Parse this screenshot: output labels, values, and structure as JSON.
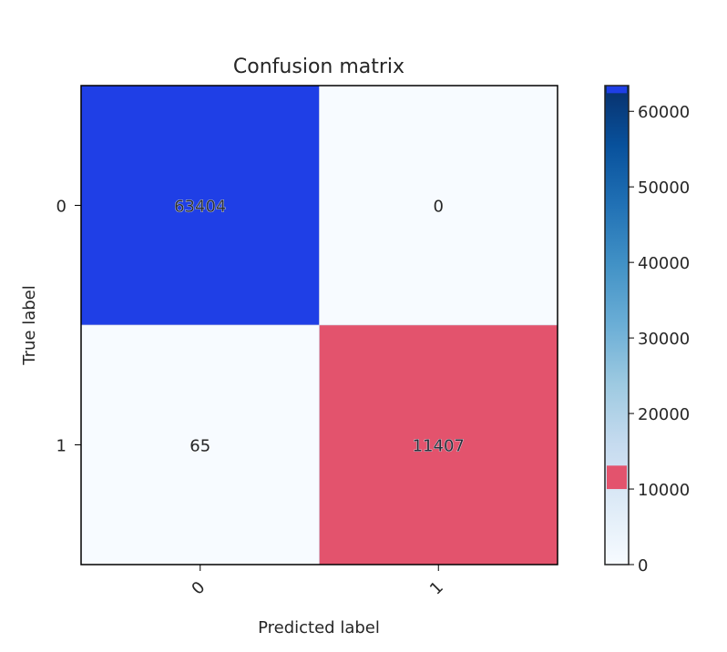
{
  "chart_data": {
    "type": "heatmap",
    "title": "Confusion matrix",
    "xlabel": "Predicted label",
    "ylabel": "True label",
    "x_categories": [
      "0",
      "1"
    ],
    "y_categories": [
      "0",
      "1"
    ],
    "values": [
      [
        63404,
        0
      ],
      [
        65,
        11407
      ]
    ],
    "value_labels": [
      [
        "63404",
        "0"
      ],
      [
        "65",
        "11407"
      ]
    ],
    "cell_colors": [
      [
        "#1f3fe6",
        "#f7fbff"
      ],
      [
        "#f7fbff",
        "#e3536d"
      ]
    ],
    "colorbar": {
      "range": [
        0,
        63404
      ],
      "ticks": [
        0,
        10000,
        20000,
        30000,
        40000,
        50000,
        60000
      ],
      "tick_labels": [
        "0",
        "10000",
        "20000",
        "30000",
        "40000",
        "50000",
        "60000"
      ],
      "colormap": "Blues",
      "highlights": [
        {
          "from": 62400,
          "to": 63404,
          "color": "#1f3fe6"
        },
        {
          "from": 10000,
          "to": 13100,
          "color": "#e3536d"
        }
      ]
    },
    "grid": false
  }
}
